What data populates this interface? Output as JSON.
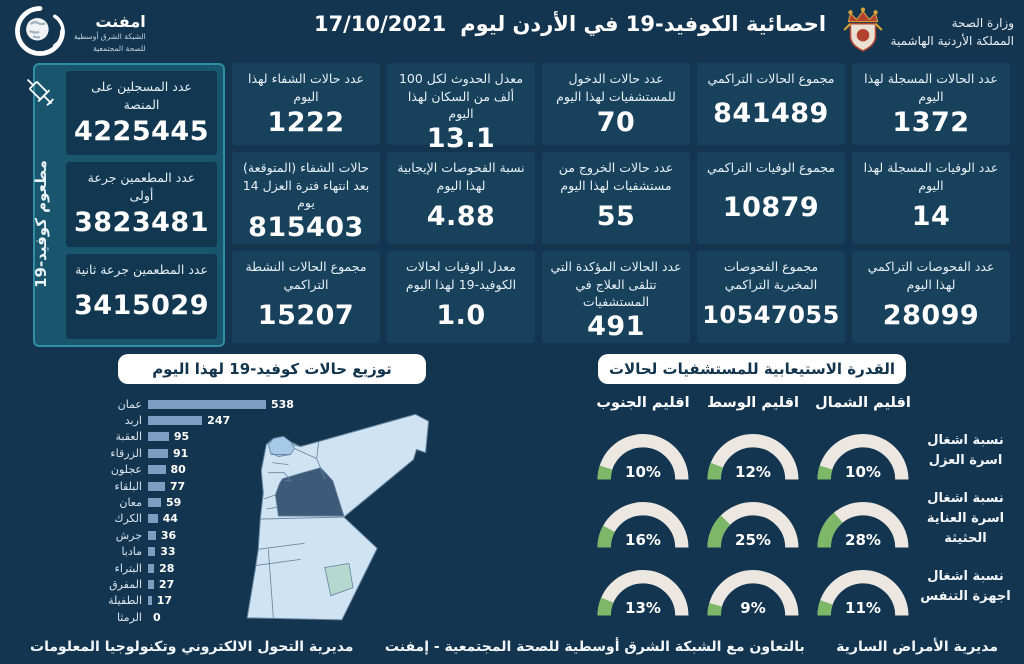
{
  "header": {
    "title": "احصائية الكوفيد-19 في الأردن ليوم",
    "date": "17/10/2021",
    "ministry": {
      "line1": "وزارة الصحة",
      "line2": "المملكة الأردنية الهاشمية"
    },
    "emphnet": {
      "name": "امفنت",
      "line1": "الشبكة الشرق أوسطية",
      "line2": "للصحة المجتمعية"
    }
  },
  "stats_columns": [
    {
      "cards": [
        {
          "label": "عدد الحالات المسجلة لهذا اليوم",
          "value": "1372"
        },
        {
          "label": "عدد الوفيات المسجلة لهذا اليوم",
          "value": "14"
        },
        {
          "label": "عدد الفحوصات التراكمي لهذا اليوم",
          "value": "28099"
        }
      ]
    },
    {
      "cards": [
        {
          "label": "مجموع الحالات التراكمي",
          "value": "841489"
        },
        {
          "label": "مجموع الوفيات التراكمي",
          "value": "10879"
        },
        {
          "label": "مجموع الفحوصات المخبرية التراكمي",
          "value": "10547055"
        }
      ]
    },
    {
      "cards": [
        {
          "label": "عدد حالات الدخول للمستشفيات لهذا اليوم",
          "value": "70"
        },
        {
          "label": "عدد حالات الخروج من مستشفيات لهذا اليوم",
          "value": "55"
        },
        {
          "label": "عدد الحالات المؤكدة التي تتلقى العلاج في المستشفيات",
          "value": "491"
        }
      ]
    },
    {
      "cards": [
        {
          "label": "معدل الحدوث لكل 100 ألف من السكان لهذا اليوم",
          "value": "13.1"
        },
        {
          "label": "نسبة الفحوصات الإيجابية لهذا اليوم",
          "value": "4.88"
        },
        {
          "label": "معدل الوفيات لحالات الكوفيد-19 لهذا اليوم",
          "value": "1.0"
        }
      ]
    },
    {
      "cards": [
        {
          "label": "عدد حالات الشفاء لهذا اليوم",
          "value": "1222"
        },
        {
          "label": "حالات الشفاء (المتوقعة) بعد انتهاء فترة العزل 14 يوم",
          "value": "815403"
        },
        {
          "label": "مجموع الحالات النشطة التراكمي",
          "value": "15207"
        }
      ]
    }
  ],
  "vaccine_panel": {
    "side_label": "مطعوم كوفيد-19",
    "icon": "syringe-icon",
    "cards": [
      {
        "label": "عدد المسجلين على المنصة",
        "value": "4225445"
      },
      {
        "label": "عدد المطعمين جرعة أولى",
        "value": "3823481"
      },
      {
        "label": "عدد المطعمين جرعة ثانية",
        "value": "3415029"
      }
    ]
  },
  "section_titles": {
    "distribution": "توزيع حالات كوفيد-19 لهذا اليوم",
    "capacity": "القدرة الاستيعابية للمستشفيات لحالات كوفيد-19"
  },
  "chart_data": [
    {
      "type": "bar",
      "orientation": "horizontal",
      "title": "توزيع حالات كوفيد-19 لهذا اليوم",
      "categories": [
        "عمان",
        "اربد",
        "العقبة",
        "الزرقاء",
        "عجلون",
        "البلقاء",
        "معان",
        "الكرك",
        "جرش",
        "مادبا",
        "البتراء",
        "المفرق",
        "الطفيلة",
        "الرمثا"
      ],
      "values": [
        538,
        247,
        95,
        91,
        80,
        77,
        59,
        44,
        36,
        33,
        28,
        27,
        17,
        0
      ],
      "xlim": [
        0,
        560
      ],
      "bar_color": "#7e9dc2",
      "value_labels": true
    },
    {
      "type": "gauge-grid",
      "title": "القدرة الاستيعابية للمستشفيات لحالات كوفيد-19",
      "regions": [
        "اقليم الشمال",
        "اقليم الوسط",
        "اقليم الجنوب"
      ],
      "rows": [
        {
          "label": "نسبة اشغال اسرة العزل",
          "values": [
            10,
            12,
            10
          ]
        },
        {
          "label": "نسبة اشغال اسرة العناية الحثيثة",
          "values": [
            28,
            25,
            16
          ]
        },
        {
          "label": "نسبة اشغال اجهزة التنفس",
          "values": [
            11,
            9,
            13
          ]
        }
      ],
      "unit": "%",
      "range": [
        0,
        100
      ],
      "track_color": "#ece8e1",
      "fill_color": "#7cb868"
    }
  ],
  "footer": {
    "right": "مديرية الأمراض السارية",
    "center": "بالتعاون مع الشبكة الشرق أوسطية للصحة المجتمعية - إمفنت",
    "left": "مديرية التحول الالكتروني وتكنولوجيا المعلومات"
  },
  "colors": {
    "background": "#14354f",
    "card": "#18415c",
    "vaccine_panel": "#19566d",
    "vaccine_border": "#2f8da4",
    "bar": "#7e9dc2",
    "gauge_track": "#ece8e1",
    "gauge_fill": "#7cb868",
    "map_light": "#cfe3f3",
    "map_medium": "#a6c9e8",
    "map_dark": "#3d5b79"
  }
}
